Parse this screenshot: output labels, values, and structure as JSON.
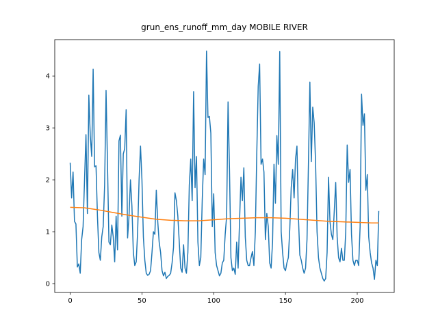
{
  "chart_data": {
    "type": "line",
    "title": "grun_ens_runoff_mm_day MOBILE RIVER",
    "x": [
      0,
      1,
      2,
      3,
      4,
      5,
      6,
      7,
      8,
      9,
      10,
      11,
      12,
      13,
      14,
      15,
      16,
      17,
      18,
      19,
      20,
      21,
      22,
      23,
      24,
      25,
      26,
      27,
      28,
      29,
      30,
      31,
      32,
      33,
      34,
      35,
      36,
      37,
      38,
      39,
      40,
      41,
      42,
      43,
      44,
      45,
      46,
      47,
      48,
      49,
      50,
      51,
      52,
      53,
      54,
      55,
      56,
      57,
      58,
      59,
      60,
      61,
      62,
      63,
      64,
      65,
      66,
      67,
      68,
      69,
      70,
      71,
      72,
      73,
      74,
      75,
      76,
      77,
      78,
      79,
      80,
      81,
      82,
      83,
      84,
      85,
      86,
      87,
      88,
      89,
      90,
      91,
      92,
      93,
      94,
      95,
      96,
      97,
      98,
      99,
      100,
      101,
      102,
      103,
      104,
      105,
      106,
      107,
      108,
      109,
      110,
      111,
      112,
      113,
      114,
      115,
      116,
      117,
      118,
      119,
      120,
      121,
      122,
      123,
      124,
      125,
      126,
      127,
      128,
      129,
      130,
      131,
      132,
      133,
      134,
      135,
      136,
      137,
      138,
      139,
      140,
      141,
      142,
      143,
      144,
      145,
      146,
      147,
      148,
      149,
      150,
      151,
      152,
      153,
      154,
      155,
      156,
      157,
      158,
      159,
      160,
      161,
      162,
      163,
      164,
      165,
      166,
      167,
      168,
      169,
      170,
      171,
      172,
      173,
      174,
      175,
      176,
      177,
      178,
      179,
      180,
      181,
      182,
      183,
      184,
      185,
      186,
      187,
      188,
      189,
      190,
      191,
      192,
      193,
      194,
      195,
      196,
      197,
      198,
      199,
      200,
      201,
      202,
      203,
      204,
      205,
      206,
      207,
      208,
      209,
      210,
      211,
      212,
      213,
      214,
      215
    ],
    "series": [
      {
        "color": "#1f77b4",
        "values": [
          2.33,
          1.65,
          2.15,
          1.2,
          1.15,
          0.32,
          0.38,
          0.2,
          0.85,
          1.1,
          2.0,
          2.87,
          1.35,
          3.63,
          2.85,
          2.45,
          4.13,
          2.25,
          2.27,
          1.3,
          0.6,
          0.45,
          0.9,
          1.1,
          1.9,
          3.72,
          2.3,
          0.8,
          0.75,
          1.13,
          0.9,
          0.42,
          1.3,
          0.65,
          2.75,
          2.86,
          1.3,
          2.5,
          2.6,
          3.35,
          0.88,
          1.3,
          2.0,
          1.5,
          0.6,
          0.35,
          0.42,
          1.0,
          2.0,
          2.65,
          2.0,
          0.9,
          0.45,
          0.2,
          0.16,
          0.18,
          0.25,
          0.6,
          1.0,
          0.95,
          1.8,
          1.2,
          0.8,
          0.6,
          0.25,
          0.15,
          0.22,
          0.1,
          0.14,
          0.16,
          0.2,
          0.4,
          0.7,
          1.75,
          1.6,
          1.3,
          0.8,
          0.3,
          0.22,
          0.75,
          0.3,
          0.2,
          0.6,
          1.9,
          2.4,
          1.6,
          3.7,
          1.85,
          2.45,
          0.8,
          0.35,
          0.5,
          1.6,
          2.4,
          2.1,
          4.48,
          3.2,
          3.22,
          2.9,
          1.1,
          1.73,
          0.6,
          0.35,
          0.25,
          0.15,
          0.2,
          0.4,
          0.45,
          0.95,
          1.3,
          3.5,
          2.2,
          0.5,
          0.25,
          0.3,
          0.18,
          0.8,
          0.3,
          1.2,
          2.05,
          1.6,
          2.23,
          0.9,
          0.45,
          0.35,
          0.35,
          0.5,
          0.62,
          0.35,
          1.0,
          2.5,
          3.8,
          4.23,
          2.3,
          2.4,
          2.15,
          0.85,
          1.35,
          1.1,
          0.4,
          0.3,
          0.8,
          2.3,
          1.55,
          2.85,
          2.3,
          4.47,
          1.0,
          0.6,
          0.3,
          0.25,
          0.4,
          0.5,
          1.05,
          1.85,
          2.2,
          1.65,
          2.4,
          2.65,
          1.3,
          0.55,
          0.45,
          0.3,
          0.2,
          0.3,
          0.85,
          2.3,
          3.88,
          2.35,
          3.4,
          3.1,
          2.3,
          1.0,
          0.5,
          0.3,
          0.2,
          0.1,
          0.05,
          0.1,
          0.6,
          2.05,
          1.2,
          0.95,
          0.85,
          1.4,
          1.95,
          0.9,
          0.5,
          0.42,
          0.68,
          0.45,
          0.45,
          1.0,
          2.67,
          1.95,
          2.2,
          0.95,
          0.45,
          0.35,
          0.45,
          0.45,
          0.35,
          1.1,
          3.65,
          3.05,
          3.27,
          1.8,
          2.1,
          0.9,
          0.6,
          0.4,
          0.3,
          0.08,
          0.45,
          0.35,
          1.4
        ]
      },
      {
        "color": "#ff7f0e",
        "x": [
          0,
          10,
          20,
          30,
          40,
          50,
          60,
          70,
          80,
          90,
          100,
          110,
          120,
          130,
          140,
          150,
          160,
          170,
          180,
          190,
          200,
          210,
          215
        ],
        "values": [
          1.47,
          1.46,
          1.42,
          1.37,
          1.32,
          1.28,
          1.24,
          1.22,
          1.21,
          1.21,
          1.23,
          1.25,
          1.26,
          1.27,
          1.27,
          1.26,
          1.24,
          1.22,
          1.2,
          1.19,
          1.18,
          1.17,
          1.17
        ]
      }
    ],
    "xlim": [
      -10.75,
      225.75
    ],
    "ylim": [
      -0.17,
      4.7
    ],
    "xticks": [
      0,
      50,
      100,
      150,
      200
    ],
    "yticks": [
      0,
      1,
      2,
      3,
      4
    ]
  }
}
